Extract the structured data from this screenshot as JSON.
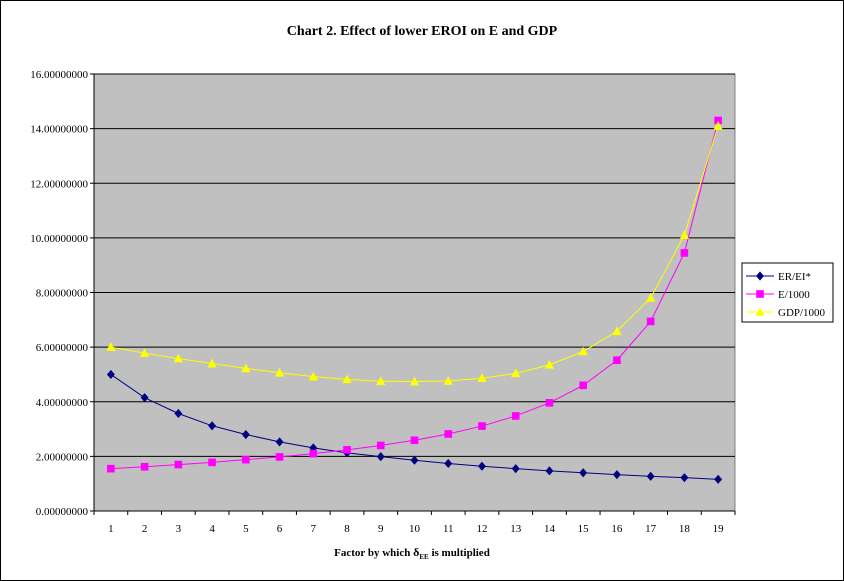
{
  "chart_data": {
    "type": "line",
    "title": "Chart 2.  Effect of lower EROI on E and GDP",
    "xlabel": {
      "prefix": "Factor by which ",
      "symbol": "δ",
      "subscript": "EE",
      "suffix": " is multiplied"
    },
    "ylabel": "",
    "x": [
      1,
      2,
      3,
      4,
      5,
      6,
      7,
      8,
      9,
      10,
      11,
      12,
      13,
      14,
      15,
      16,
      17,
      18,
      19
    ],
    "ylim": [
      0,
      16
    ],
    "y_ticks": [
      "0.00000000",
      "2.00000000",
      "4.00000000",
      "6.00000000",
      "8.00000000",
      "10.00000000",
      "12.00000000",
      "14.00000000",
      "16.00000000"
    ],
    "grid": true,
    "plot_background": "#c0c0c0",
    "legend_position": "right",
    "series": [
      {
        "name": "ER/EI*",
        "color": "#000080",
        "marker": "diamond",
        "values": [
          5.0,
          4.15,
          3.57,
          3.12,
          2.8,
          2.53,
          2.31,
          2.13,
          1.99,
          1.86,
          1.74,
          1.64,
          1.55,
          1.47,
          1.4,
          1.33,
          1.27,
          1.22,
          1.16
        ]
      },
      {
        "name": "E/1000",
        "color": "#ff00ff",
        "marker": "square",
        "values": [
          1.55,
          1.62,
          1.7,
          1.78,
          1.88,
          1.98,
          2.1,
          2.24,
          2.4,
          2.59,
          2.82,
          3.11,
          3.48,
          3.96,
          4.6,
          5.52,
          6.94,
          9.45,
          14.3
        ]
      },
      {
        "name": "GDP/1000",
        "color": "#ffff00",
        "marker": "triangle",
        "values": [
          6.0,
          5.78,
          5.58,
          5.4,
          5.22,
          5.06,
          4.92,
          4.82,
          4.75,
          4.74,
          4.76,
          4.86,
          5.04,
          5.35,
          5.84,
          6.58,
          7.8,
          10.1,
          14.1
        ]
      }
    ]
  }
}
